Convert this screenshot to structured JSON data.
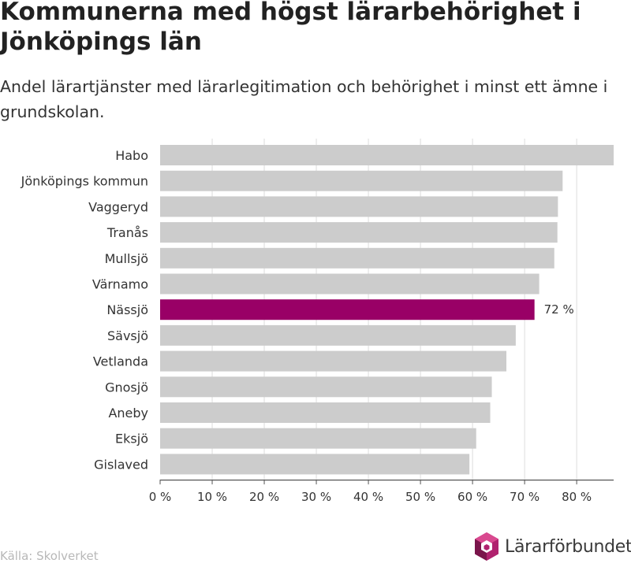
{
  "header": {
    "title": "Kommunerna med högst lärarbehörighet i Jönköpings län",
    "subtitle": "Andel lärartjänster med lärarlegitimation och behörighet i minst ett ämne i grundskolan."
  },
  "footer": {
    "source": "Källa: Skolverket",
    "brand_name": "Lärarförbundet"
  },
  "colors": {
    "bar_default": "#cccccc",
    "bar_highlight": "#990066",
    "grid": "#dcdcdc",
    "axis": "#555555",
    "text": "#333333",
    "brand": "#b0226e"
  },
  "chart_data": {
    "type": "bar",
    "orientation": "horizontal",
    "categories": [
      "Habo",
      "Jönköpings kommun",
      "Vaggeryd",
      "Tranås",
      "Mullsjö",
      "Värnamo",
      "Nässjö",
      "Sävsjö",
      "Vetlanda",
      "Gnosjö",
      "Aneby",
      "Eksjö",
      "Gislaved"
    ],
    "values": [
      87.1,
      77.3,
      76.4,
      76.3,
      75.7,
      72.8,
      71.9,
      68.3,
      66.5,
      63.7,
      63.4,
      60.7,
      59.4
    ],
    "highlight_index": 6,
    "data_labels": [
      {
        "index": 6,
        "text": "72 %"
      }
    ],
    "xlim": [
      0,
      87.1
    ],
    "xticks": [
      0,
      10,
      20,
      30,
      40,
      50,
      60,
      70,
      80
    ],
    "xtick_labels": [
      "0 %",
      "10 %",
      "20 %",
      "30 %",
      "40 %",
      "50 %",
      "60 %",
      "70 %",
      "80 %"
    ],
    "grid": true,
    "legend": "none"
  }
}
